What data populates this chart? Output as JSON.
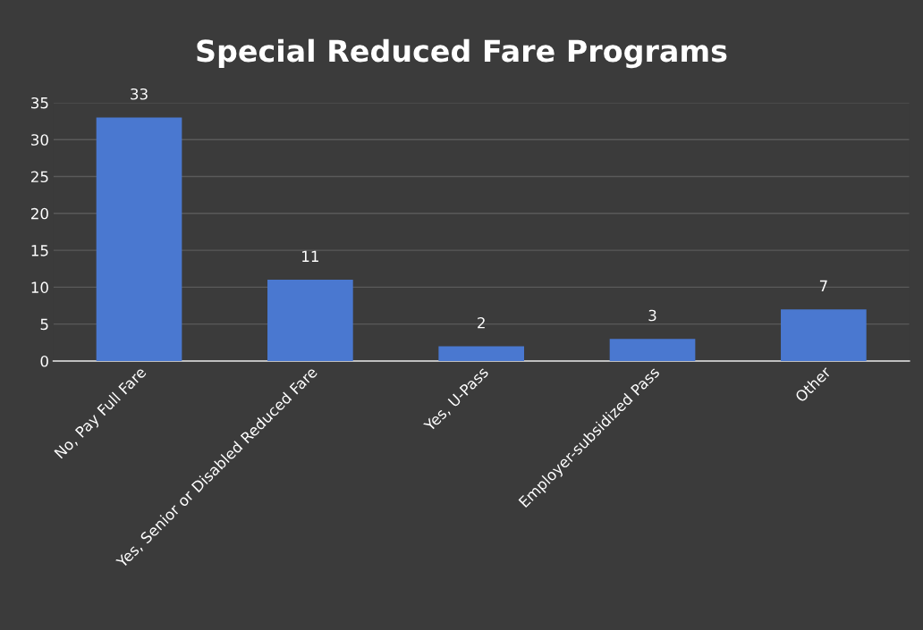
{
  "chart_data": {
    "type": "bar",
    "title": "Special Reduced Fare Programs",
    "categories": [
      "No, Pay Full Fare",
      "Yes, Senior or Disabled Reduced Fare",
      "Yes, U-Pass",
      "Employer-subsidized Pass",
      "Other"
    ],
    "values": [
      33,
      11,
      2,
      3,
      7
    ],
    "color": "#4a78d0",
    "ylim": [
      0,
      35
    ],
    "yticks": [
      0,
      5,
      10,
      15,
      20,
      25,
      30,
      35
    ],
    "grid": "y",
    "data_labels": true
  }
}
